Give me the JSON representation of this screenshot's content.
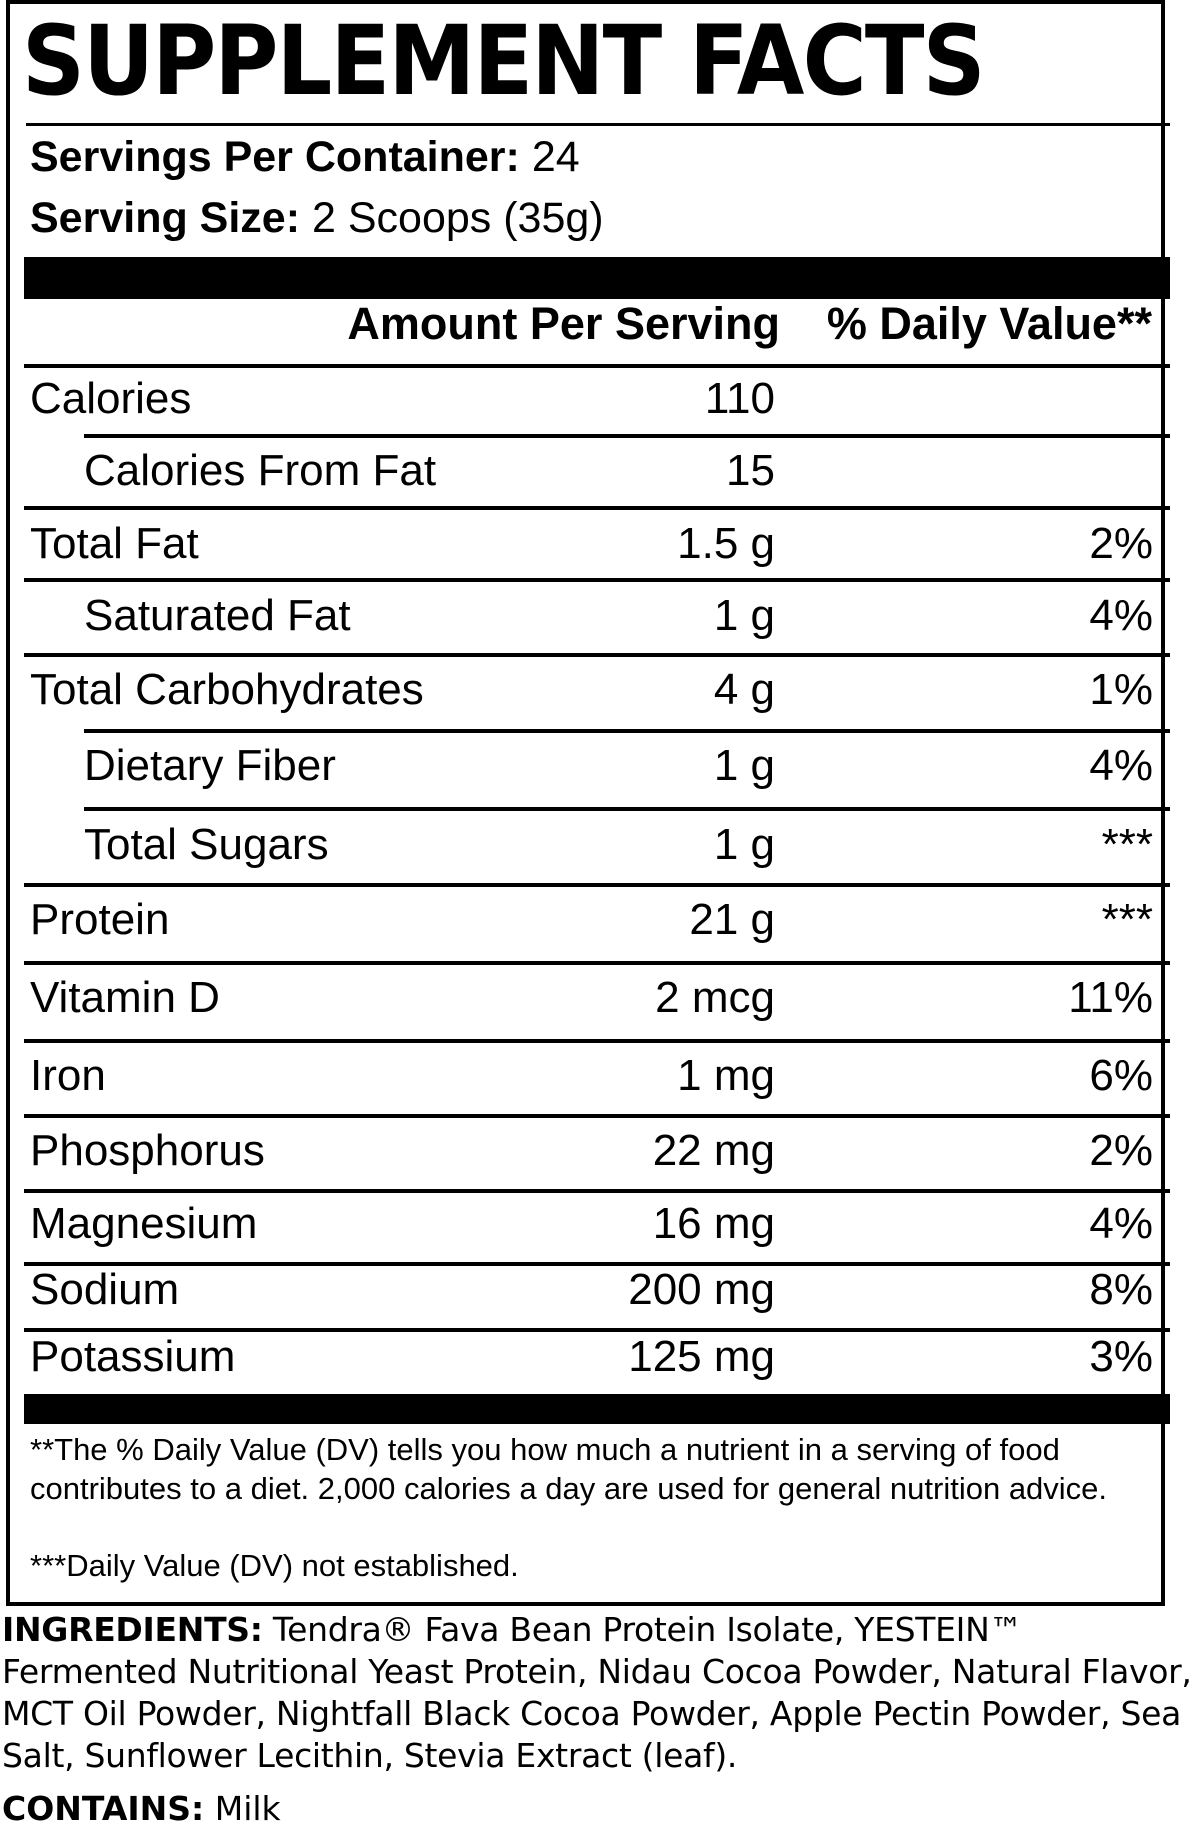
{
  "label": {
    "title": "SUPPLEMENT FACTS",
    "servings_per_container_label": "Servings Per Container:",
    "servings_per_container_value": "24",
    "serving_size_label": "Serving Size:",
    "serving_size_value": "2 Scoops (35g)",
    "amount_header": "Amount Per Serving",
    "dv_header": "% Daily Value**",
    "rows": [
      {
        "name": "Calories",
        "amount": "110",
        "dv": ""
      },
      {
        "name": "Calories From Fat",
        "amount": "15",
        "dv": ""
      },
      {
        "name": "Total Fat",
        "amount": "1.5 g",
        "dv": "2%"
      },
      {
        "name": "Saturated Fat",
        "amount": "1 g",
        "dv": "4%"
      },
      {
        "name": "Total Carbohydrates",
        "amount": "4 g",
        "dv": "1%"
      },
      {
        "name": "Dietary Fiber",
        "amount": "1 g",
        "dv": "4%"
      },
      {
        "name": "Total Sugars",
        "amount": "1 g",
        "dv": "***"
      },
      {
        "name": "Protein",
        "amount": "21 g",
        "dv": "***"
      },
      {
        "name": "Vitamin D",
        "amount": "2 mcg",
        "dv": "11%"
      },
      {
        "name": "Iron",
        "amount": "1 mg",
        "dv": "6%"
      },
      {
        "name": "Phosphorus",
        "amount": "22 mg",
        "dv": "2%"
      },
      {
        "name": "Magnesium",
        "amount": "16 mg",
        "dv": "4%"
      },
      {
        "name": "Sodium",
        "amount": "200 mg",
        "dv": "8%"
      },
      {
        "name": "Potassium",
        "amount": "125 mg",
        "dv": "3%"
      }
    ],
    "footnote_1": "**The % Daily Value (DV) tells you how much a nutrient in a serving of food contributes to a diet. 2,000 calories a day are used for general nutrition advice.",
    "footnote_2": "***Daily Value (DV) not established."
  },
  "ingredients": {
    "label": "INGREDIENTS:",
    "text": " Tendra® Fava Bean Protein Isolate, YESTEIN™ Fermented Nutritional Yeast Protein, Nidau Cocoa Powder, Natural Flavor, MCT Oil Powder, Nightfall Black Cocoa Powder, Apple Pectin Powder, Sea Salt, Sunflower Lecithin, Stevia Extract (leaf)."
  },
  "contains": {
    "label": "CONTAINS:",
    "text": " Milk"
  }
}
